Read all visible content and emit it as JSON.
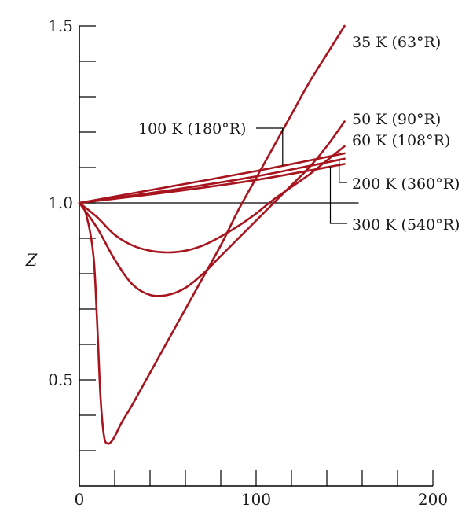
{
  "chart_data": {
    "type": "line",
    "title": "",
    "xlabel": "",
    "ylabel": "Z",
    "xlim": [
      0,
      200
    ],
    "ylim": [
      0.2,
      1.5
    ],
    "x_ticks": [
      0,
      100,
      200
    ],
    "x_minor_step": 20,
    "y_ticks": [
      0.5,
      1.0,
      1.5
    ],
    "y_tick_labels": [
      "0.5",
      "1.0",
      "1.5"
    ],
    "y_minor_step": 0.1,
    "reference_line": {
      "y": 1.0,
      "x_end": 150
    },
    "line_color": "#a8141e",
    "grid": false,
    "legend": "none",
    "series": [
      {
        "name": "35 K (63°R)",
        "x": [
          0,
          4,
          8,
          10,
          12,
          14,
          16,
          18,
          20,
          24,
          30,
          40,
          50,
          60,
          70,
          80,
          90,
          100,
          110,
          120,
          130,
          140,
          150
        ],
        "y": [
          1.0,
          0.965,
          0.85,
          0.67,
          0.45,
          0.34,
          0.32,
          0.325,
          0.34,
          0.38,
          0.43,
          0.52,
          0.61,
          0.7,
          0.79,
          0.88,
          0.98,
          1.07,
          1.16,
          1.25,
          1.34,
          1.42,
          1.5
        ]
      },
      {
        "name": "50 K (90°R)",
        "x": [
          0,
          10,
          20,
          30,
          40,
          50,
          60,
          70,
          80,
          90,
          100,
          110,
          120,
          130,
          140,
          150
        ],
        "y": [
          1.0,
          0.93,
          0.84,
          0.77,
          0.74,
          0.74,
          0.76,
          0.8,
          0.85,
          0.9,
          0.95,
          1.0,
          1.05,
          1.1,
          1.16,
          1.23
        ]
      },
      {
        "name": "60 K (108°R)",
        "x": [
          0,
          10,
          20,
          30,
          40,
          50,
          60,
          70,
          80,
          90,
          100,
          110,
          120,
          130,
          140,
          150
        ],
        "y": [
          1.0,
          0.96,
          0.91,
          0.88,
          0.865,
          0.86,
          0.865,
          0.88,
          0.905,
          0.935,
          0.97,
          1.01,
          1.045,
          1.08,
          1.12,
          1.16
        ]
      },
      {
        "name": "100 K (180°R)",
        "x": [
          0,
          50,
          100,
          150
        ],
        "y": [
          1.0,
          1.045,
          1.09,
          1.14
        ]
      },
      {
        "name": "200 K (360°R)",
        "x": [
          0,
          50,
          100,
          150
        ],
        "y": [
          1.0,
          1.035,
          1.075,
          1.125
        ]
      },
      {
        "name": "300 K (540°R)",
        "x": [
          0,
          50,
          100,
          150
        ],
        "y": [
          1.0,
          1.03,
          1.065,
          1.11
        ]
      }
    ],
    "annotations": [
      {
        "text": "35 K (63°R)",
        "series": 0
      },
      {
        "text": "50 K (90°R)",
        "series": 1
      },
      {
        "text": "60 K (108°R)",
        "series": 2
      },
      {
        "text": "100 K (180°R)",
        "series": 3
      },
      {
        "text": "200 K (360°R)",
        "series": 4
      },
      {
        "text": "300 K (540°R)",
        "series": 5
      }
    ]
  }
}
